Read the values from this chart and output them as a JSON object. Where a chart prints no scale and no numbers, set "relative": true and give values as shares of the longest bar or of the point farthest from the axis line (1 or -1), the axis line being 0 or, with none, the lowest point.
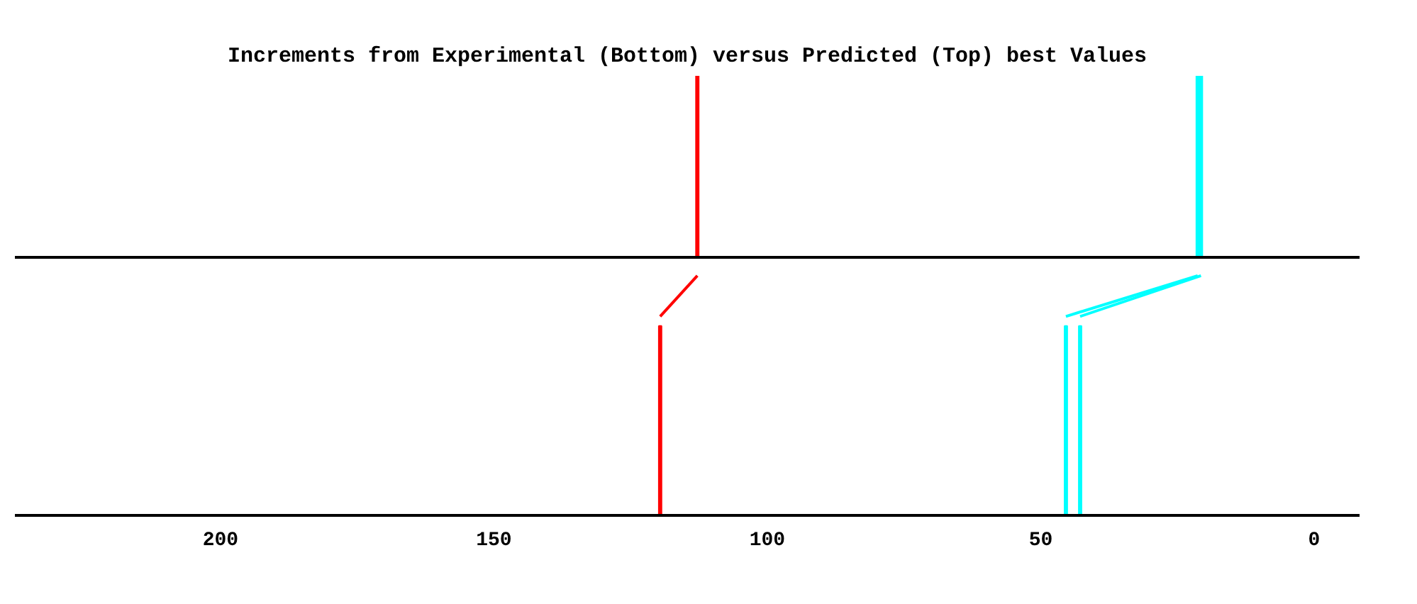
{
  "chart_data": [
    {
      "type": "bar",
      "title": "Increments from Experimental (Bottom) versus Predicted (Top) best Values",
      "relative": true,
      "xlim": [
        237.6,
        -8.3
      ],
      "xticks": [
        200,
        150,
        100,
        50,
        0
      ],
      "grid": false,
      "tick_labels": false,
      "series": [
        {
          "x": [
            112.8,
            21.3,
            20.7
          ],
          "values": [
            1,
            1,
            1
          ],
          "colors": [
            "#ff0000",
            "#00ffff",
            "#00ffff"
          ]
        }
      ]
    },
    {
      "type": "bar",
      "relative": true,
      "xlim": [
        237.6,
        -8.3
      ],
      "xticks": [
        200,
        150,
        100,
        50,
        0
      ],
      "grid": false,
      "tick_labels": "x",
      "series": [
        {
          "x": [
            119.6,
            45.4,
            42.8
          ],
          "values": [
            0.79,
            0.79,
            0.79
          ],
          "colors": [
            "#ff0000",
            "#00ffff",
            "#00ffff"
          ]
        },
        {
          "type": "line",
          "x": [
            119.6,
            112.8
          ],
          "values": [
            0.83,
            1
          ],
          "color": "#ff0000"
        },
        {
          "type": "line",
          "x": [
            45.4,
            21.3
          ],
          "values": [
            0.83,
            1
          ],
          "color": "#00ffff"
        },
        {
          "type": "line",
          "x": [
            42.8,
            20.7
          ],
          "values": [
            0.83,
            1
          ],
          "color": "#00ffff"
        }
      ]
    }
  ]
}
